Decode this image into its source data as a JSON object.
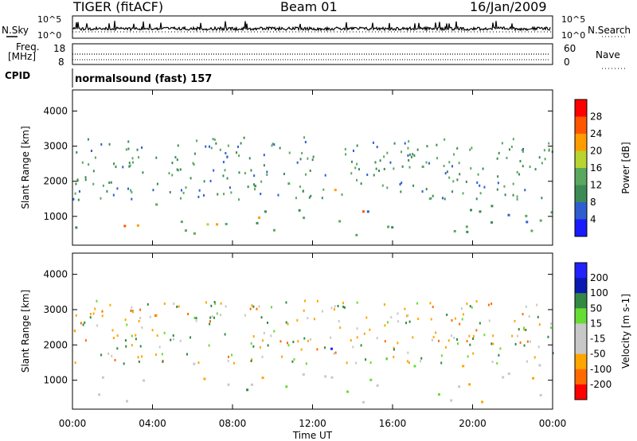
{
  "header": {
    "radar": "TIGER (fitACF)",
    "beam": "Beam 01",
    "date": "16/Jan/2009"
  },
  "labels": {
    "nsky": "N.Sky",
    "nsearch": "N.Search",
    "freq": "Freq.",
    "mhz": "[MHz]",
    "nave": "Nave",
    "cpid": "CPID",
    "cpid_value": "normalsound (fast) 157"
  },
  "tick_labels": {
    "noise_left_top": "10^5",
    "noise_left_bottom": "10^0",
    "noise_right_top": "10^5",
    "noise_right_bottom": "10^0",
    "freq_left_top": "18",
    "freq_left_bottom": "8",
    "nave_right_top": "60",
    "nave_right_bottom": "0"
  },
  "colors": {
    "power_scale": [
      "#1a1aff",
      "#2f5ecf",
      "#3c8a55",
      "#5aa860",
      "#b8d430",
      "#ff9d00",
      "#ff5500",
      "#ff0000"
    ],
    "velocity_scale": [
      "#ff0000",
      "#ff6a00",
      "#ffa500",
      "#c8c8c8",
      "#c8c8c8",
      "#66dd33",
      "#338844",
      "#0a1ab0",
      "#2222ff"
    ]
  },
  "chart_data": [
    {
      "type": "heatmap",
      "panel": "power",
      "xlabel": "Time UT",
      "ylabel": "Slant Range [km]",
      "x_ticks": [
        "00:00",
        "04:00",
        "08:00",
        "12:00",
        "16:00",
        "20:00",
        "00:00"
      ],
      "y_ticks": [
        "1000",
        "2000",
        "3000",
        "4000"
      ],
      "colorbar_label": "Power [dB]",
      "colorbar_ticks": [
        "28",
        "24",
        "20",
        "16",
        "12",
        "8",
        "4"
      ],
      "regions_hours_km": [
        {
          "t0": 0,
          "t1": 24,
          "r0": 400,
          "r1": 1500,
          "level": 12
        },
        {
          "t0": 0,
          "t1": 4,
          "r0": 500,
          "r1": 900,
          "level": 26
        },
        {
          "t0": 6.5,
          "t1": 10,
          "r0": 550,
          "r1": 1000,
          "level": 22
        },
        {
          "t0": 10.5,
          "t1": 13.5,
          "r0": 1500,
          "r1": 2000,
          "level": 20
        },
        {
          "t0": 14,
          "t1": 16,
          "r0": 900,
          "r1": 1500,
          "level": 22
        },
        {
          "t0": 22,
          "t1": 24,
          "r0": 700,
          "r1": 1100,
          "level": 18
        }
      ]
    },
    {
      "type": "heatmap",
      "panel": "velocity",
      "xlabel": "Time UT",
      "ylabel": "Slant Range [km]",
      "x_ticks": [
        "00:00",
        "04:00",
        "08:00",
        "12:00",
        "16:00",
        "20:00",
        "00:00"
      ],
      "y_ticks": [
        "1000",
        "2000",
        "3000",
        "4000"
      ],
      "colorbar_label": "Velocity [m s-1]",
      "colorbar_ticks": [
        "200",
        "100",
        "50",
        "15",
        "-15",
        "-50",
        "-100",
        "-200"
      ],
      "regions_hours_km": [
        {
          "t0": 0,
          "t1": 24,
          "r0": 400,
          "r1": 1500,
          "velocity": 0
        },
        {
          "t0": 11.8,
          "t1": 13,
          "r0": 1500,
          "r1": 2000,
          "velocity": 200
        },
        {
          "t0": 3.5,
          "t1": 6,
          "r0": 2800,
          "r1": 3000,
          "velocity": -80
        },
        {
          "t0": 6,
          "t1": 10,
          "r0": 600,
          "r1": 900,
          "velocity": 30
        }
      ]
    },
    {
      "type": "line",
      "panel": "noise",
      "series": [
        {
          "name": "N.Sky"
        },
        {
          "name": "N.Search"
        }
      ]
    },
    {
      "type": "line",
      "panel": "frequency",
      "series": [
        {
          "name": "Freq."
        },
        {
          "name": "Nave"
        }
      ]
    }
  ]
}
